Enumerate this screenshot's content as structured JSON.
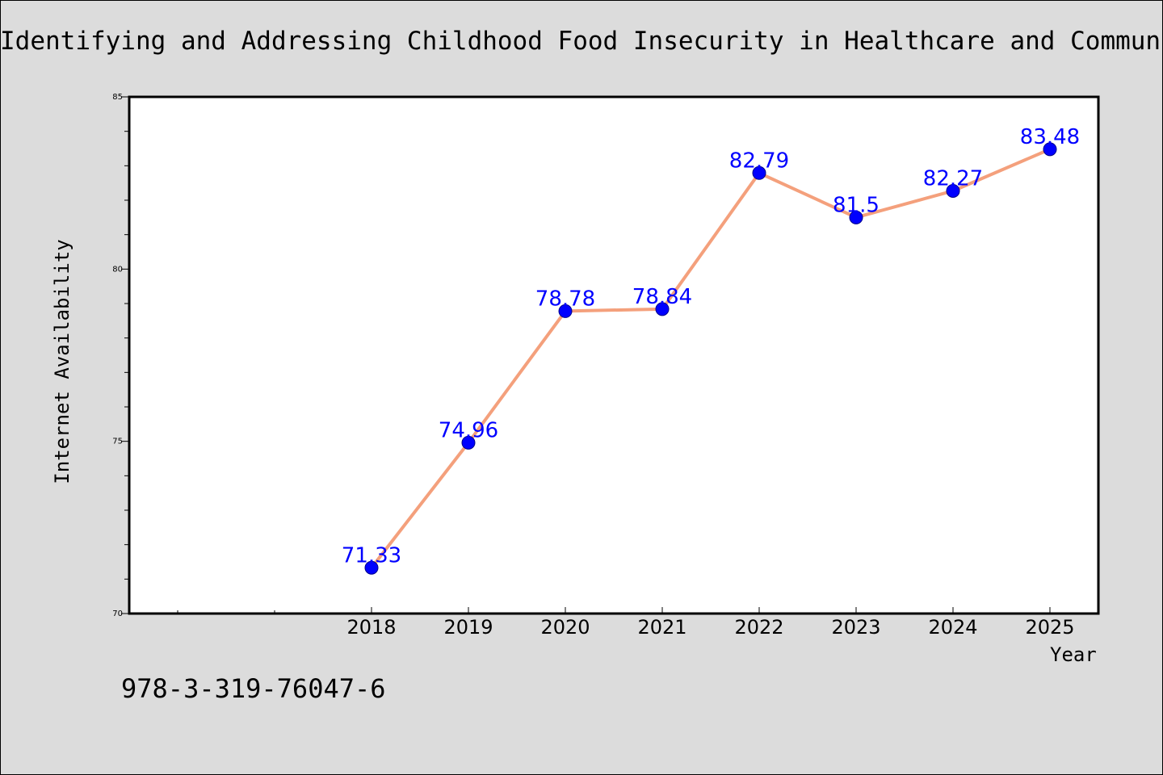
{
  "chart_data": {
    "type": "line",
    "title": "Identifying and Addressing Childhood Food Insecurity in Healthcare and Community Settings",
    "xlabel": "Year",
    "ylabel": "Internet Availability",
    "x": [
      "2018",
      "2019",
      "2020",
      "2021",
      "2022",
      "2023",
      "2024",
      "2025"
    ],
    "series": [
      {
        "values": [
          71.33,
          74.96,
          78.78,
          78.84,
          82.79,
          81.5,
          82.27,
          83.48
        ]
      }
    ],
    "data_labels": [
      "71.33",
      "74.96",
      "78.78",
      "78.84",
      "82.79",
      "81.5",
      "82.27",
      "83.48"
    ],
    "ylim": [
      70,
      85
    ],
    "yticks": [
      "70",
      "75",
      "80",
      "85"
    ],
    "grid": false,
    "colors": {
      "line": "#f4a07c",
      "marker": "#0000ff",
      "label": "#0000ff",
      "plot_bg": "#ffffff",
      "page_bg": "#dcdcdc"
    }
  },
  "footer": {
    "isbn": "978-3-319-76047-6"
  }
}
